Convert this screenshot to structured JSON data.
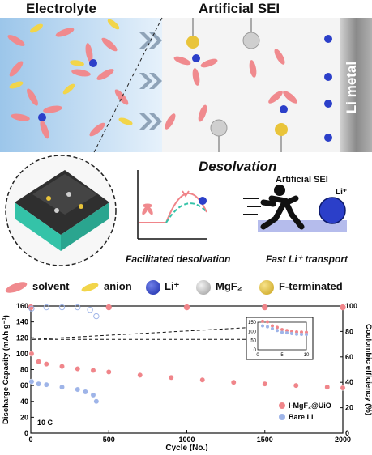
{
  "top_panel": {
    "electrolyte_label": "Electrolyte",
    "sei_label": "Artificial SEI",
    "li_metal_label": "Li metal"
  },
  "middle_panel": {
    "desolvation_label": "Desolvation",
    "facilitated_label": "Facilitated desolvation",
    "fast_transport_label": "Fast Li⁺ transport",
    "runner_sei_label": "Artificial SEI",
    "li_plus_label": "Li⁺"
  },
  "legend": {
    "items": [
      {
        "label": "solvent",
        "icon": "solvent-ellipse-icon",
        "color": "#f08a8e"
      },
      {
        "label": "anion",
        "icon": "anion-ellipse-icon",
        "color": "#f2d54a"
      },
      {
        "label": "Li⁺",
        "icon": "li-ion-sphere-icon",
        "color": "#2b3fc9"
      },
      {
        "label": "MgF₂",
        "icon": "mgf2-sphere-icon",
        "color": "#c8c8c8"
      },
      {
        "label": "F-terminated",
        "icon": "f-terminated-sphere-icon",
        "color": "#e9c43a"
      }
    ]
  },
  "colors": {
    "electrolyte_bg": "#bcd9f2",
    "sei_bg": "#f2f2f2",
    "li_metal": "#8c8c8c",
    "mof": "#34c3a8",
    "series1": "#f0858a",
    "series2": "#9eb4e8"
  },
  "chart_data": {
    "type": "scatter",
    "xlabel": "Cycle (No.)",
    "ylabel": "Discharge Capacity (mAh g⁻¹)",
    "y2label": "Coulombic efficiency (%)",
    "xlim": [
      0,
      2000
    ],
    "ylim": [
      0,
      160
    ],
    "y2lim": [
      0,
      100
    ],
    "xticks": [
      0,
      500,
      1000,
      1500,
      2000
    ],
    "yticks": [
      0,
      20,
      40,
      60,
      80,
      100,
      120,
      140,
      160
    ],
    "y2ticks": [
      0,
      20,
      40,
      60,
      80,
      100
    ],
    "rate_label": "10 C",
    "series": [
      {
        "name": "l-MgF₂@UiO",
        "color": "#f0858a",
        "capacity": {
          "x": [
            5,
            50,
            100,
            200,
            300,
            400,
            500,
            700,
            900,
            1100,
            1300,
            1500,
            1700,
            1900,
            2000
          ],
          "y": [
            100,
            90,
            87,
            84,
            81,
            79,
            77,
            73,
            70,
            67,
            64,
            62,
            60,
            58,
            57
          ]
        },
        "ce": {
          "x": [
            0,
            500,
            1000,
            1500,
            2000
          ],
          "y": [
            99,
            99,
            99,
            99,
            99
          ]
        }
      },
      {
        "name": "Bare Li",
        "color": "#9eb4e8",
        "capacity": {
          "x": [
            5,
            50,
            100,
            200,
            300,
            350,
            400,
            420
          ],
          "y": [
            65,
            62,
            61,
            58,
            55,
            52,
            48,
            40
          ]
        },
        "ce": {
          "x": [
            5,
            100,
            200,
            300,
            380,
            420
          ],
          "y": [
            98,
            99,
            99,
            99,
            97,
            92
          ]
        }
      }
    ],
    "inset": {
      "xlim": [
        0,
        10
      ],
      "ylim": [
        0,
        150
      ],
      "xticks": [
        0,
        5,
        10
      ],
      "yticks": [
        0,
        50,
        100,
        150
      ],
      "series": [
        {
          "name": "l-MgF₂@UiO",
          "x": [
            1,
            2,
            3,
            4,
            5,
            6,
            7,
            8,
            9,
            10
          ],
          "y": [
            155,
            152,
            130,
            122,
            110,
            105,
            100,
            97,
            96,
            95
          ]
        },
        {
          "name": "Bare Li",
          "x": [
            1,
            2,
            3,
            4,
            5,
            6,
            7,
            8,
            9,
            10
          ],
          "y": [
            130,
            125,
            115,
            105,
            95,
            92,
            88,
            85,
            84,
            83
          ]
        }
      ]
    }
  }
}
